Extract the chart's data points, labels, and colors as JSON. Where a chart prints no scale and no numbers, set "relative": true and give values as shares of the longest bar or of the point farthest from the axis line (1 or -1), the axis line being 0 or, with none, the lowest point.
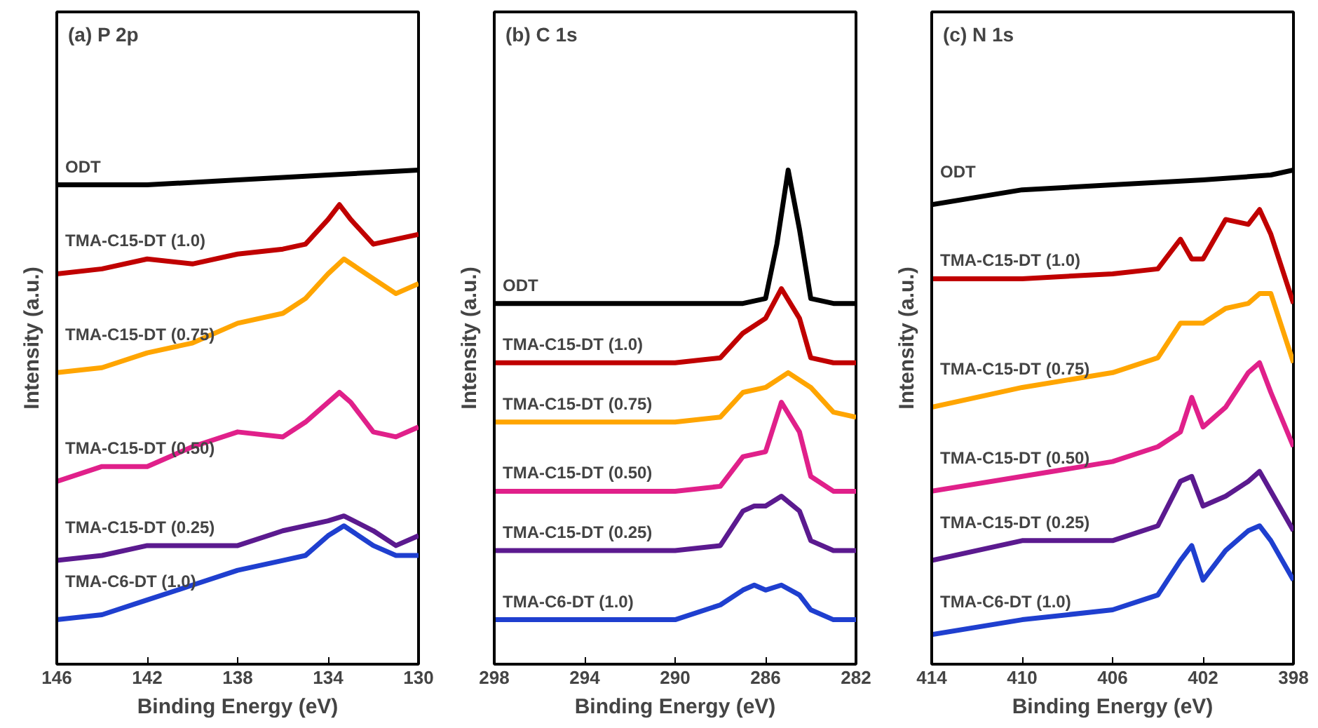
{
  "chart_data": [
    {
      "type": "line",
      "title": "(a) P 2p",
      "xlabel": "Binding Energy (eV)",
      "ylabel": "Intensity (a.u.)",
      "relative": true,
      "xlim": [
        146,
        130
      ],
      "xticks": [
        146,
        142,
        138,
        134,
        130
      ],
      "tick_labels": "x",
      "grid": false,
      "marker": "none",
      "line_style": "solid",
      "series": [
        {
          "name": "ODT",
          "color": "#000000",
          "x": [
            146,
            142,
            138,
            134,
            130
          ],
          "values": [
            0.97,
            0.97,
            0.98,
            0.99,
            1.0
          ]
        },
        {
          "name": "TMA-C15-DT (1.0)",
          "color": "#c00000",
          "x": [
            146,
            144,
            142,
            140,
            138,
            136,
            135,
            134,
            133.5,
            133,
            132,
            131,
            130
          ],
          "values": [
            0.79,
            0.8,
            0.82,
            0.81,
            0.83,
            0.84,
            0.85,
            0.9,
            0.93,
            0.9,
            0.85,
            0.86,
            0.87
          ]
        },
        {
          "name": "TMA-C15-DT (0.75)",
          "color": "#ffa500",
          "x": [
            146,
            144,
            142,
            140,
            138,
            136,
            135,
            134,
            133.3,
            132,
            131,
            130
          ],
          "values": [
            0.59,
            0.6,
            0.63,
            0.65,
            0.69,
            0.71,
            0.74,
            0.79,
            0.82,
            0.78,
            0.75,
            0.77
          ]
        },
        {
          "name": "TMA-C15-DT (0.50)",
          "color": "#e0208a",
          "x": [
            146,
            144,
            142,
            140,
            138,
            136,
            135,
            134,
            133.5,
            133,
            132,
            131,
            130
          ],
          "values": [
            0.37,
            0.4,
            0.4,
            0.44,
            0.47,
            0.46,
            0.49,
            0.53,
            0.55,
            0.53,
            0.47,
            0.46,
            0.48
          ]
        },
        {
          "name": "TMA-C15-DT (0.25)",
          "color": "#5b1a8f",
          "x": [
            146,
            144,
            142,
            140,
            138,
            136,
            134,
            133.3,
            132,
            131,
            130
          ],
          "values": [
            0.21,
            0.22,
            0.24,
            0.24,
            0.24,
            0.27,
            0.29,
            0.3,
            0.27,
            0.24,
            0.26
          ]
        },
        {
          "name": "TMA-C6-DT (1.0)",
          "color": "#1f3fcf",
          "x": [
            146,
            144,
            142,
            140,
            138,
            136,
            135,
            134,
            133.3,
            132,
            131,
            130
          ],
          "values": [
            0.09,
            0.1,
            0.13,
            0.16,
            0.19,
            0.21,
            0.22,
            0.26,
            0.28,
            0.24,
            0.22,
            0.22
          ]
        }
      ]
    },
    {
      "type": "line",
      "title": "(b) C 1s",
      "xlabel": "Binding Energy (eV)",
      "ylabel": "Intensity (a.u.)",
      "relative": true,
      "xlim": [
        298,
        282
      ],
      "xticks": [
        298,
        294,
        290,
        286,
        282
      ],
      "tick_labels": "x",
      "grid": false,
      "marker": "none",
      "line_style": "solid",
      "series": [
        {
          "name": "ODT",
          "color": "#000000",
          "x": [
            298,
            290,
            287,
            286,
            285.5,
            285,
            284.5,
            284,
            283,
            282
          ],
          "values": [
            0.73,
            0.73,
            0.73,
            0.74,
            0.85,
            1.0,
            0.88,
            0.74,
            0.73,
            0.73
          ]
        },
        {
          "name": "TMA-C15-DT (1.0)",
          "color": "#c00000",
          "x": [
            298,
            290,
            288,
            287,
            286,
            285.3,
            284.5,
            284,
            283,
            282
          ],
          "values": [
            0.61,
            0.61,
            0.62,
            0.67,
            0.7,
            0.76,
            0.7,
            0.62,
            0.61,
            0.61
          ]
        },
        {
          "name": "TMA-C15-DT (0.75)",
          "color": "#ffa500",
          "x": [
            298,
            290,
            288,
            287,
            286,
            285,
            284,
            283,
            282
          ],
          "values": [
            0.49,
            0.49,
            0.5,
            0.55,
            0.56,
            0.59,
            0.56,
            0.51,
            0.5
          ]
        },
        {
          "name": "TMA-C15-DT (0.50)",
          "color": "#e0208a",
          "x": [
            298,
            290,
            288,
            287,
            286,
            285.3,
            284.5,
            284,
            283,
            282
          ],
          "values": [
            0.35,
            0.35,
            0.36,
            0.42,
            0.43,
            0.53,
            0.47,
            0.38,
            0.35,
            0.35
          ]
        },
        {
          "name": "TMA-C15-DT (0.25)",
          "color": "#5b1a8f",
          "x": [
            298,
            290,
            288,
            287,
            286.5,
            286,
            285.3,
            284.5,
            284,
            283,
            282
          ],
          "values": [
            0.23,
            0.23,
            0.24,
            0.31,
            0.32,
            0.32,
            0.34,
            0.31,
            0.25,
            0.23,
            0.23
          ]
        },
        {
          "name": "TMA-C6-DT (1.0)",
          "color": "#1f3fcf",
          "x": [
            298,
            290,
            288,
            287,
            286.5,
            286,
            285.3,
            284.5,
            284,
            283,
            282
          ],
          "values": [
            0.09,
            0.09,
            0.12,
            0.15,
            0.16,
            0.15,
            0.16,
            0.14,
            0.11,
            0.09,
            0.09
          ]
        }
      ]
    },
    {
      "type": "line",
      "title": "(c) N 1s",
      "xlabel": "Binding Energy (eV)",
      "ylabel": "Intensity (a.u.)",
      "relative": true,
      "xlim": [
        414,
        398
      ],
      "xticks": [
        414,
        410,
        406,
        402,
        398
      ],
      "tick_labels": "x",
      "grid": false,
      "marker": "none",
      "line_style": "solid",
      "series": [
        {
          "name": "ODT",
          "color": "#000000",
          "x": [
            414,
            410,
            406,
            402,
            399,
            398
          ],
          "values": [
            0.93,
            0.96,
            0.97,
            0.98,
            0.99,
            1.0
          ]
        },
        {
          "name": "TMA-C15-DT (1.0)",
          "color": "#c00000",
          "x": [
            414,
            410,
            406,
            404,
            403,
            402.5,
            402,
            401,
            400,
            399.5,
            399,
            398
          ],
          "values": [
            0.78,
            0.78,
            0.79,
            0.8,
            0.86,
            0.82,
            0.82,
            0.9,
            0.89,
            0.92,
            0.87,
            0.73
          ]
        },
        {
          "name": "TMA-C15-DT (0.75)",
          "color": "#ffa500",
          "x": [
            414,
            410,
            406,
            404,
            403,
            402,
            401,
            400,
            399.5,
            399,
            398
          ],
          "values": [
            0.52,
            0.56,
            0.59,
            0.62,
            0.69,
            0.69,
            0.72,
            0.73,
            0.75,
            0.75,
            0.61
          ]
        },
        {
          "name": "TMA-C15-DT (0.50)",
          "color": "#e0208a",
          "x": [
            414,
            410,
            406,
            404,
            403,
            402.5,
            402,
            401,
            400,
            399.5,
            399,
            398
          ],
          "values": [
            0.35,
            0.38,
            0.41,
            0.44,
            0.47,
            0.54,
            0.48,
            0.52,
            0.59,
            0.61,
            0.55,
            0.44
          ]
        },
        {
          "name": "TMA-C15-DT (0.25)",
          "color": "#5b1a8f",
          "x": [
            414,
            410,
            406,
            404,
            403,
            402.5,
            402,
            401,
            400,
            399.5,
            399,
            398
          ],
          "values": [
            0.21,
            0.25,
            0.25,
            0.28,
            0.37,
            0.38,
            0.32,
            0.34,
            0.37,
            0.39,
            0.35,
            0.27
          ]
        },
        {
          "name": "TMA-C6-DT (1.0)",
          "color": "#1f3fcf",
          "x": [
            414,
            410,
            406,
            404,
            403,
            402.5,
            402,
            401,
            400,
            399.5,
            399,
            398
          ],
          "values": [
            0.06,
            0.09,
            0.11,
            0.14,
            0.21,
            0.24,
            0.17,
            0.23,
            0.27,
            0.28,
            0.25,
            0.17
          ]
        }
      ]
    }
  ]
}
